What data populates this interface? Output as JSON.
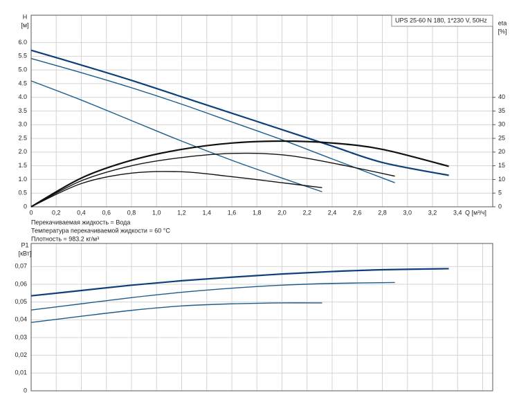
{
  "chart_data": [
    {
      "type": "line",
      "legend_text": "UPS 25-60 N 180, 1*230 V, 50Hz",
      "y_label": "H",
      "y_unit": "[м]",
      "y2_label": "eta",
      "y2_unit": "[%]",
      "x_label": "Q [м³/ч]",
      "notes": [
        "Перекачиваемая жидкость = Вода",
        "Температура перекачиваемой жидкости = 60 °C",
        "Плотность = 983.2 кг/м³"
      ],
      "xlim": [
        0,
        3.68
      ],
      "ylim": [
        0,
        7
      ],
      "y2lim": [
        0,
        70
      ],
      "xticks": [
        0,
        {
          "value": 0.2,
          "label": "0,2"
        },
        {
          "value": 0.4,
          "label": "0,4"
        },
        {
          "value": 0.6,
          "label": "0,6"
        },
        {
          "value": 0.8,
          "label": "0,8"
        },
        {
          "value": 1,
          "label": "1,0"
        },
        {
          "value": 1.2,
          "label": "1,2"
        },
        {
          "value": 1.4,
          "label": "1,4"
        },
        {
          "value": 1.6,
          "label": "1,6"
        },
        {
          "value": 1.8,
          "label": "1,8"
        },
        {
          "value": 2,
          "label": "2,0"
        },
        {
          "value": 2.2,
          "label": "2,2"
        },
        {
          "value": 2.4,
          "label": "2,4"
        },
        {
          "value": 2.6,
          "label": "2,6"
        },
        {
          "value": 2.8,
          "label": "2,8"
        },
        {
          "value": 3,
          "label": "3,0"
        },
        {
          "value": 3.2,
          "label": "3,2"
        },
        {
          "value": 3.4,
          "label": "3,4"
        }
      ],
      "yticks": [
        0,
        0.5,
        {
          "value": 1,
          "label": "1.0"
        },
        1.5,
        {
          "value": 2,
          "label": "2.0"
        },
        2.5,
        {
          "value": 3,
          "label": "3.0"
        },
        3.5,
        {
          "value": 4,
          "label": "4.0"
        },
        4.5,
        {
          "value": 5,
          "label": "5.0"
        },
        5.5,
        {
          "value": 6,
          "label": "6.0"
        }
      ],
      "y2ticks": [
        0,
        5,
        10,
        15,
        20,
        25,
        30,
        35,
        40
      ],
      "grid": true,
      "series": [
        {
          "color": "#0d3f7a",
          "width": 2.2,
          "x": [
            0,
            0.4,
            0.8,
            1.2,
            1.6,
            2.0,
            2.4,
            2.8,
            3.33
          ],
          "values": [
            5.72,
            5.18,
            4.62,
            4.02,
            3.42,
            2.82,
            2.22,
            1.62,
            1.15
          ]
        },
        {
          "color": "#1a5c8c",
          "width": 1.4,
          "x": [
            0,
            0.4,
            0.8,
            1.2,
            1.6,
            2.0,
            2.4,
            2.9
          ],
          "values": [
            5.42,
            4.9,
            4.35,
            3.75,
            3.1,
            2.45,
            1.75,
            0.88
          ]
        },
        {
          "color": "#1a5c8c",
          "width": 1.4,
          "x": [
            0,
            0.4,
            0.8,
            1.2,
            1.6,
            2.0,
            2.32
          ],
          "values": [
            4.6,
            3.9,
            3.15,
            2.4,
            1.7,
            1.05,
            0.55
          ]
        },
        {
          "color": "#111111",
          "width": 2.2,
          "axis": "y2",
          "x": [
            0,
            0.4,
            0.8,
            1.2,
            1.6,
            2.0,
            2.4,
            2.8,
            3.33
          ],
          "values": [
            0,
            10.5,
            17,
            21,
            23.3,
            24,
            23.3,
            21,
            14.8
          ]
        },
        {
          "color": "#111111",
          "width": 1.4,
          "axis": "y2",
          "x": [
            0,
            0.4,
            0.8,
            1.2,
            1.6,
            2.0,
            2.4,
            2.9
          ],
          "values": [
            0,
            9.5,
            15,
            18,
            19.5,
            19,
            16,
            11.2
          ]
        },
        {
          "color": "#111111",
          "width": 1.4,
          "axis": "y2",
          "x": [
            0,
            0.4,
            0.8,
            1.2,
            1.6,
            2.0,
            2.32
          ],
          "values": [
            0,
            8.5,
            12.3,
            12.8,
            11,
            8.8,
            7
          ]
        }
      ]
    },
    {
      "type": "line",
      "y_label": "P1",
      "y_unit": "[кВт]",
      "xlim": [
        0,
        3.68
      ],
      "ylim": [
        0,
        0.083
      ],
      "xticks": [
        0,
        0.2,
        0.4,
        0.6,
        0.8,
        1,
        1.2,
        1.4,
        1.6,
        1.8,
        2,
        2.2,
        2.4,
        2.6,
        2.8,
        3,
        3.2,
        3.4,
        3.6
      ],
      "yticks": [
        0,
        {
          "value": 0.01,
          "label": "0,01"
        },
        {
          "value": 0.02,
          "label": "0,02"
        },
        {
          "value": 0.03,
          "label": "0,03"
        },
        {
          "value": 0.04,
          "label": "0,04"
        },
        {
          "value": 0.05,
          "label": "0,05"
        },
        {
          "value": 0.06,
          "label": "0,06"
        },
        {
          "value": 0.07,
          "label": "0,07"
        }
      ],
      "grid": true,
      "series": [
        {
          "color": "#0d3f7a",
          "width": 2.2,
          "x": [
            0,
            0.4,
            0.8,
            1.2,
            1.6,
            2.0,
            2.4,
            2.8,
            3.33
          ],
          "values": [
            0.0535,
            0.0565,
            0.0595,
            0.062,
            0.064,
            0.0658,
            0.0672,
            0.0682,
            0.0688
          ]
        },
        {
          "color": "#1a5c8c",
          "width": 1.4,
          "x": [
            0,
            0.4,
            0.8,
            1.2,
            1.6,
            2.0,
            2.4,
            2.9
          ],
          "values": [
            0.0455,
            0.049,
            0.0525,
            0.0555,
            0.0578,
            0.0595,
            0.0605,
            0.061
          ]
        },
        {
          "color": "#1a5c8c",
          "width": 1.4,
          "x": [
            0,
            0.4,
            0.8,
            1.2,
            1.6,
            2.0,
            2.32
          ],
          "values": [
            0.0385,
            0.042,
            0.0453,
            0.0478,
            0.049,
            0.0495,
            0.0495
          ]
        }
      ]
    }
  ]
}
